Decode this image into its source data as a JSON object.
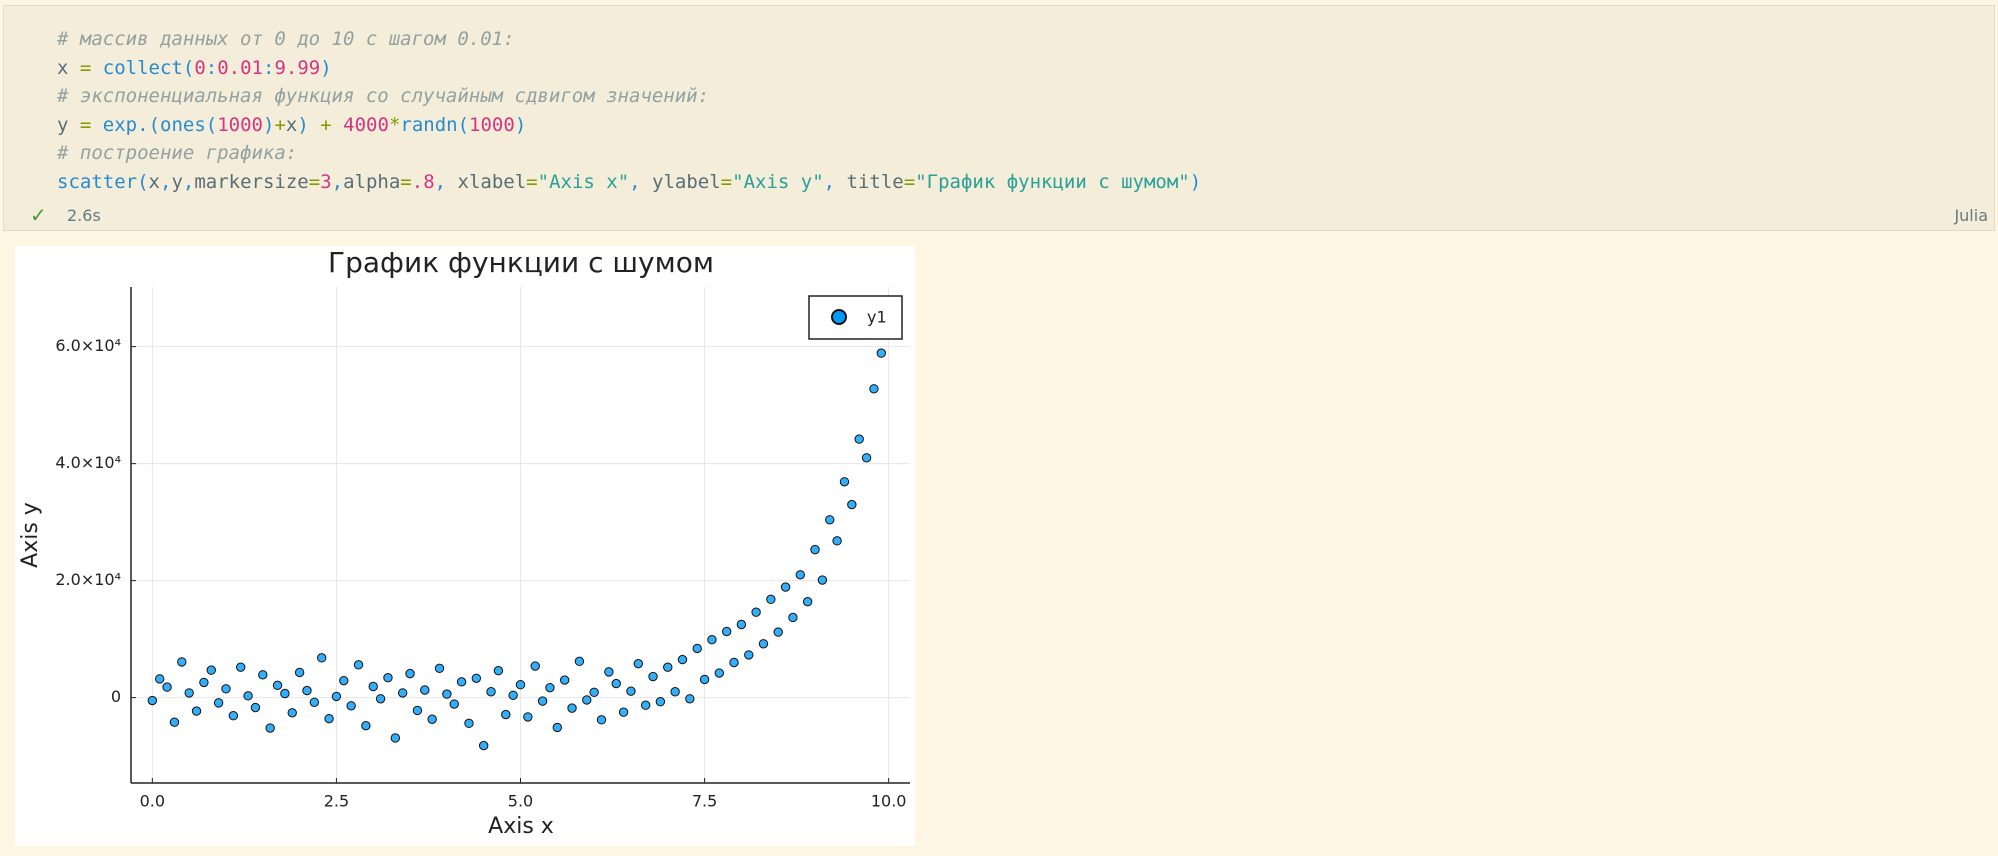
{
  "cell": {
    "code": [
      "# массив данных от 0 до 10 с шагом 0.01:",
      "x = collect(0:0.01:9.99)",
      "# экспоненциальная функция со случайным сдвигом значений:",
      "y = exp.(ones(1000)+x) + 4000*randn(1000)",
      "# построение графика:",
      "scatter(x,y,markersize=3,alpha=.8, xlabel=\"Axis x\", ylabel=\"Axis y\", title=\"График функции с шумом\")"
    ],
    "status_icon": "✓",
    "duration": "2.6s",
    "language": "Julia"
  },
  "chart_data": {
    "type": "scatter",
    "title": "График функции с шумом",
    "x_label": "Axis x",
    "y_label": "Axis y",
    "xlim": [
      -0.29,
      10.29
    ],
    "ylim": [
      -14600,
      70200
    ],
    "xticks": [
      {
        "value": 0,
        "label": "0.0"
      },
      2.5,
      {
        "value": 5,
        "label": "5.0"
      },
      7.5,
      {
        "value": 10,
        "label": "10.0"
      }
    ],
    "yticks": [
      0,
      {
        "value": 20000,
        "label": "2.0×10⁴"
      },
      {
        "value": 40000,
        "label": "4.0×10⁴"
      },
      {
        "value": 60000,
        "label": "6.0×10⁴"
      }
    ],
    "grid": true,
    "legend": "top-right",
    "series": [
      {
        "name": "y1",
        "color": "#009af9",
        "x": [
          0,
          0.1,
          0.2,
          0.3,
          0.4,
          0.5,
          0.6,
          0.7,
          0.8,
          0.9,
          1,
          1.1,
          1.2,
          1.3,
          1.4,
          1.5,
          1.6,
          1.7,
          1.8,
          1.9,
          2,
          2.1,
          2.2,
          2.3,
          2.4,
          2.5,
          2.6,
          2.7,
          2.8,
          2.9,
          3,
          3.1,
          3.2,
          3.3,
          3.4,
          3.5,
          3.6,
          3.7,
          3.8,
          3.9,
          4,
          4.1,
          4.2,
          4.3,
          4.4,
          4.5,
          4.6,
          4.7,
          4.8,
          4.9,
          5,
          5.1,
          5.2,
          5.3,
          5.4,
          5.5,
          5.6,
          5.7,
          5.8,
          5.9,
          6,
          6.1,
          6.2,
          6.3,
          6.4,
          6.5,
          6.6,
          6.7,
          6.8,
          6.9,
          7,
          7.1,
          7.2,
          7.3,
          7.4,
          7.5,
          7.6,
          7.7,
          7.8,
          7.9,
          8,
          8.1,
          8.2,
          8.3,
          8.4,
          8.5,
          8.6,
          8.7,
          8.8,
          8.9,
          9,
          9.1,
          9.2,
          9.3,
          9.4,
          9.5,
          9.6,
          9.7,
          9.8,
          9.9
        ],
        "values": [
          -500,
          3200,
          1800,
          -4200,
          6100,
          800,
          -2300,
          2600,
          4700,
          -900,
          1500,
          -3100,
          5200,
          300,
          -1700,
          3900,
          -5200,
          2100,
          700,
          -2600,
          4300,
          1200,
          -800,
          6800,
          -3600,
          200,
          2900,
          -1400,
          5600,
          -4800,
          1900,
          -200,
          3400,
          -6900,
          800,
          4100,
          -2200,
          1300,
          -3700,
          5000,
          600,
          -1100,
          2700,
          -4400,
          3300,
          -8200,
          1000,
          4600,
          -2900,
          400,
          2200,
          -3300,
          5400,
          -600,
          1700,
          -5100,
          3000,
          -1800,
          6200,
          -400,
          900,
          -3800,
          4400,
          2400,
          -2500,
          1100,
          5800,
          -1300,
          3600,
          -700,
          5200,
          1000,
          6500,
          -200,
          8400,
          3100,
          9900,
          4200,
          11300,
          6000,
          12500,
          7300,
          14600,
          9200,
          16800,
          11200,
          18900,
          13700,
          21000,
          16400,
          25300,
          20100,
          30400,
          26800,
          36900,
          33000,
          44200,
          41000,
          52800,
          58900
        ]
      }
    ]
  }
}
